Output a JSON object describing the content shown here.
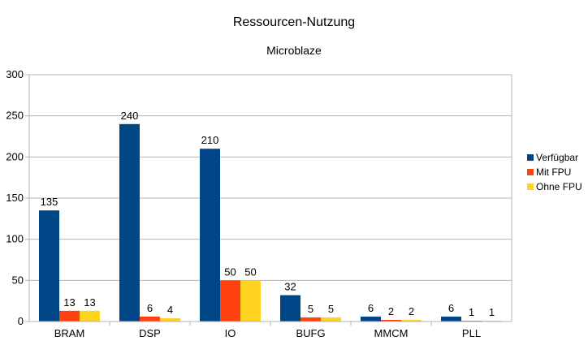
{
  "chart_data": {
    "type": "bar",
    "title": "Ressourcen-Nutzung",
    "subtitle": "Microblaze",
    "categories": [
      "BRAM",
      "DSP",
      "IO",
      "BUFG",
      "MMCM",
      "PLL"
    ],
    "series": [
      {
        "name": "Verfügbar",
        "color": "#004586",
        "values": [
          135,
          240,
          210,
          32,
          6,
          6
        ]
      },
      {
        "name": "Mit FPU",
        "color": "#ff420e",
        "values": [
          13,
          6,
          50,
          5,
          2,
          1
        ]
      },
      {
        "name": "Ohne FPU",
        "color": "#ffd320",
        "values": [
          13,
          4,
          50,
          5,
          2,
          1
        ]
      }
    ],
    "ylim": [
      0,
      300
    ],
    "yticks": [
      0,
      50,
      100,
      150,
      200,
      250,
      300
    ],
    "grid": true,
    "legend_position": "right",
    "data_labels": true
  }
}
